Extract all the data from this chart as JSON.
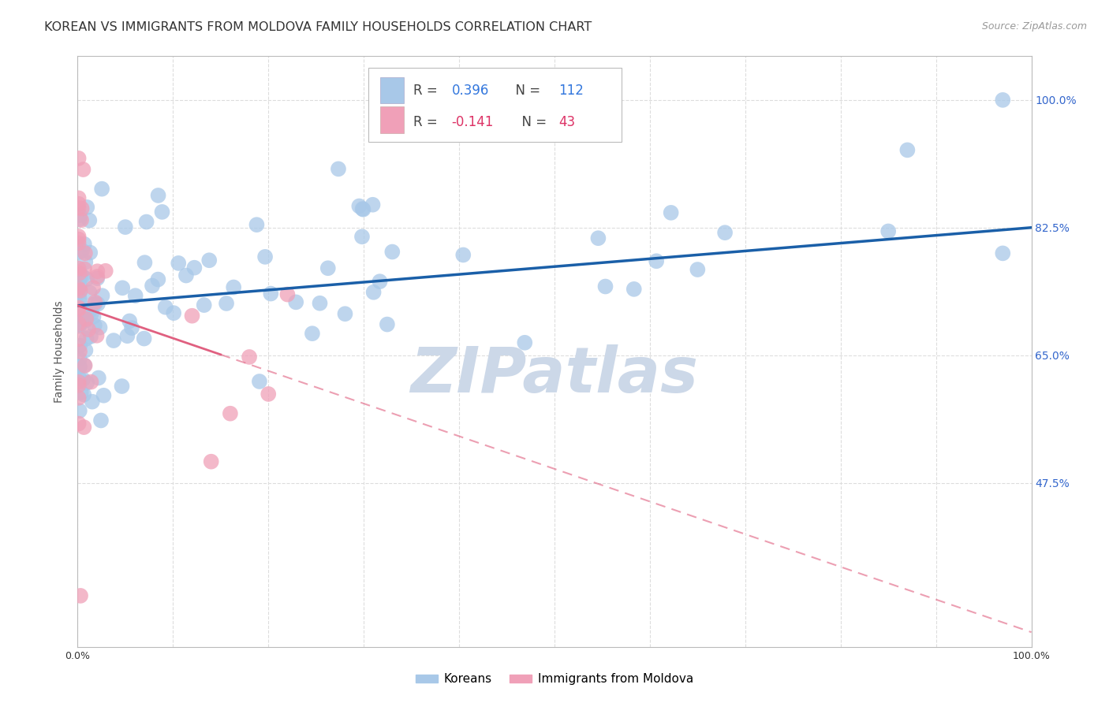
{
  "title": "KOREAN VS IMMIGRANTS FROM MOLDOVA FAMILY HOUSEHOLDS CORRELATION CHART",
  "source": "Source: ZipAtlas.com",
  "ylabel": "Family Households",
  "y_tick_labels": [
    "100.0%",
    "82.5%",
    "65.0%",
    "47.5%"
  ],
  "y_tick_positions": [
    1.0,
    0.825,
    0.65,
    0.475
  ],
  "xlim": [
    0.0,
    1.0
  ],
  "ylim": [
    0.25,
    1.06
  ],
  "korean_R": 0.396,
  "korean_N": 112,
  "moldova_R": -0.141,
  "moldova_N": 43,
  "korean_color": "#a8c8e8",
  "moldova_color": "#f0a0b8",
  "korean_line_color": "#1a5fa8",
  "moldova_line_color": "#e06080",
  "background_color": "#ffffff",
  "grid_color": "#dddddd",
  "watermark": "ZIPatlas",
  "watermark_color": "#ccd8e8",
  "title_fontsize": 11.5,
  "source_fontsize": 9,
  "axis_label_fontsize": 10,
  "tick_label_fontsize": 9,
  "korean_line_start_y": 0.718,
  "korean_line_end_y": 0.825,
  "moldova_line_start_y": 0.718,
  "moldova_line_end_y": 0.27
}
